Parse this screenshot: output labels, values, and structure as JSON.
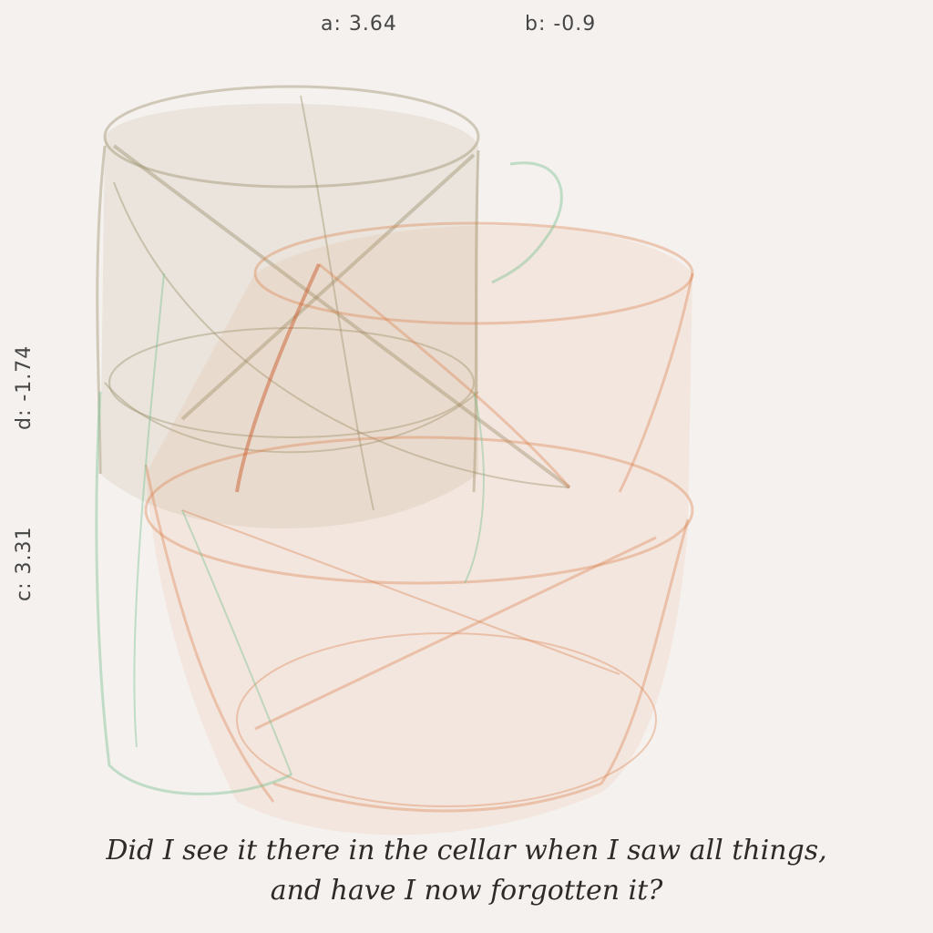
{
  "params": {
    "a": "a:  3.64",
    "b": "b:  -0.9",
    "c": "c:  3.31",
    "d": "d:  -1.74"
  },
  "quote": {
    "line1": "Did I see it there in the cellar when I saw all things,",
    "line2": "and have I now forgotten it?"
  },
  "colors": {
    "background": "#f5f1ee",
    "olive": "#8a7a50",
    "orange": "#d9773f",
    "green": "#6fbf8a"
  }
}
